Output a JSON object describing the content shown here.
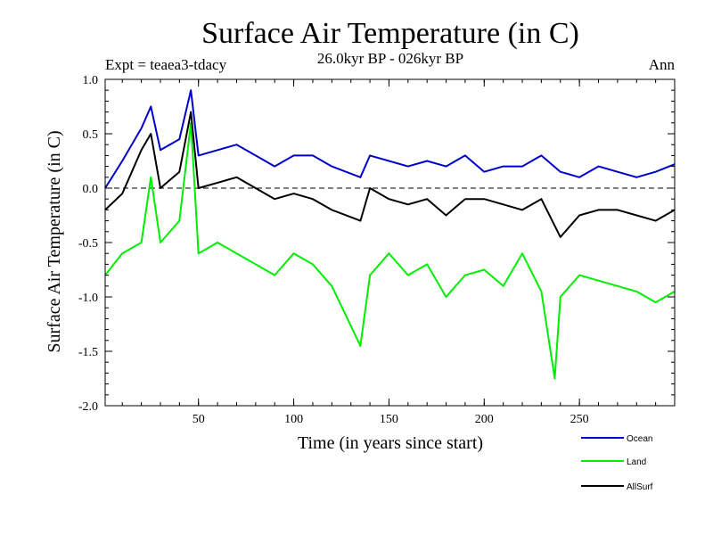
{
  "chart_data": {
    "type": "line",
    "title": "Surface Air Temperature (in C)",
    "subtitle": "26.0kyr BP - 026kyr BP",
    "experiment": "Expt = teaea3-tdacy",
    "period": "Ann",
    "xlabel": "Time (in years since start)",
    "ylabel": "Surface Air Temperature (in C)",
    "xlim": [
      1,
      300
    ],
    "ylim": [
      -2.0,
      1.0
    ],
    "xticks": [
      50,
      100,
      150,
      200,
      250
    ],
    "xtick_labels": [
      "50",
      "100",
      "150",
      "200",
      "250"
    ],
    "yticks": [
      1.0,
      0.5,
      0.0,
      -0.5,
      -1.0,
      -1.5,
      -2.0
    ],
    "ytick_labels": [
      "1.0",
      "0.5",
      "0.0",
      "-0.5",
      "-1.0",
      "-1.5",
      "-2.0"
    ],
    "zero_line": true,
    "series": [
      {
        "name": "Ocean",
        "color": "#0000cc",
        "x": [
          1,
          10,
          20,
          25,
          30,
          40,
          46,
          50,
          60,
          70,
          80,
          90,
          100,
          110,
          120,
          135,
          140,
          150,
          160,
          170,
          180,
          190,
          200,
          210,
          220,
          230,
          240,
          250,
          260,
          270,
          280,
          290,
          300
        ],
        "values": [
          0.0,
          0.25,
          0.55,
          0.75,
          0.35,
          0.45,
          0.9,
          0.3,
          0.35,
          0.4,
          0.3,
          0.2,
          0.3,
          0.3,
          0.2,
          0.1,
          0.3,
          0.25,
          0.2,
          0.25,
          0.2,
          0.3,
          0.15,
          0.2,
          0.2,
          0.3,
          0.15,
          0.1,
          0.2,
          0.15,
          0.1,
          0.15,
          0.22
        ]
      },
      {
        "name": "Land",
        "color": "#00ee00",
        "x": [
          1,
          10,
          20,
          25,
          30,
          40,
          46,
          50,
          60,
          70,
          80,
          90,
          100,
          110,
          120,
          135,
          140,
          150,
          160,
          170,
          180,
          190,
          200,
          210,
          220,
          230,
          237,
          240,
          250,
          260,
          270,
          280,
          290,
          300
        ],
        "values": [
          -0.8,
          -0.6,
          -0.5,
          0.1,
          -0.5,
          -0.3,
          0.6,
          -0.6,
          -0.5,
          -0.6,
          -0.7,
          -0.8,
          -0.6,
          -0.7,
          -0.9,
          -1.45,
          -0.8,
          -0.6,
          -0.8,
          -0.7,
          -1.0,
          -0.8,
          -0.75,
          -0.9,
          -0.6,
          -0.95,
          -1.75,
          -1.0,
          -0.8,
          -0.85,
          -0.9,
          -0.95,
          -1.05,
          -0.95
        ]
      },
      {
        "name": "AllSurf",
        "color": "#000000",
        "x": [
          1,
          10,
          20,
          25,
          30,
          40,
          46,
          50,
          60,
          70,
          80,
          90,
          100,
          110,
          120,
          135,
          140,
          150,
          160,
          170,
          180,
          190,
          200,
          210,
          220,
          230,
          240,
          250,
          260,
          270,
          280,
          290,
          300
        ],
        "values": [
          -0.2,
          -0.05,
          0.35,
          0.5,
          0.0,
          0.15,
          0.7,
          0.0,
          0.05,
          0.1,
          0.0,
          -0.1,
          -0.05,
          -0.1,
          -0.2,
          -0.3,
          0.0,
          -0.1,
          -0.15,
          -0.1,
          -0.25,
          -0.1,
          -0.1,
          -0.15,
          -0.2,
          -0.1,
          -0.45,
          -0.25,
          -0.2,
          -0.2,
          -0.25,
          -0.3,
          -0.2
        ]
      }
    ],
    "legend": {
      "position": "bottom-right",
      "entries": [
        "Ocean",
        "Land",
        "AllSurf"
      ]
    }
  }
}
